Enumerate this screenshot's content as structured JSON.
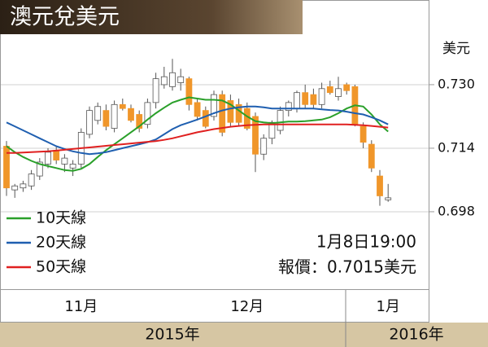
{
  "chart_data": {
    "type": "candlestick",
    "title": "澳元兌美元",
    "y_label": "美元",
    "categories": [
      null,
      null,
      null,
      null,
      null,
      null,
      null,
      null,
      null,
      "11月",
      null,
      null,
      null,
      null,
      null,
      null,
      null,
      null,
      null,
      null,
      null,
      null,
      null,
      null,
      null,
      null,
      null,
      null,
      null,
      "12月",
      null,
      null,
      null,
      null,
      null,
      null,
      null,
      null,
      null,
      null,
      null,
      null,
      null,
      null,
      null,
      null,
      "1月"
    ],
    "years": [
      "2015年",
      "2016年"
    ],
    "open": [
      0.7145,
      0.7035,
      0.704,
      0.7045,
      0.707,
      0.71,
      0.7135,
      0.71,
      0.709,
      0.71,
      0.7175,
      0.721,
      0.7235,
      0.719,
      0.725,
      0.724,
      0.7225,
      0.72,
      0.7255,
      0.73,
      0.7295,
      0.7305,
      0.7315,
      0.7255,
      0.7235,
      0.722,
      0.7275,
      0.726,
      0.725,
      0.724,
      0.722,
      0.7125,
      0.7165,
      0.7185,
      0.7235,
      0.724,
      0.728,
      0.7275,
      0.725,
      0.7295,
      0.727,
      0.73,
      0.7295,
      0.7195,
      0.715,
      0.707,
      0.701
    ],
    "high": [
      0.7158,
      0.705,
      0.7058,
      0.7085,
      0.7115,
      0.714,
      0.7145,
      0.7125,
      0.711,
      0.719,
      0.7245,
      0.7255,
      0.725,
      0.726,
      0.7265,
      0.725,
      0.7235,
      0.7265,
      0.733,
      0.7345,
      0.7365,
      0.734,
      0.732,
      0.7265,
      0.7245,
      0.7285,
      0.7285,
      0.7275,
      0.7265,
      0.7255,
      0.723,
      0.7175,
      0.721,
      0.7245,
      0.726,
      0.7285,
      0.73,
      0.729,
      0.7305,
      0.731,
      0.732,
      0.7305,
      0.73,
      0.7205,
      0.716,
      0.7085,
      0.705
    ],
    "low": [
      0.702,
      0.7015,
      0.703,
      0.7035,
      0.706,
      0.709,
      0.71,
      0.708,
      0.707,
      0.709,
      0.7165,
      0.72,
      0.7185,
      0.718,
      0.7235,
      0.7205,
      0.718,
      0.719,
      0.724,
      0.729,
      0.7285,
      0.7285,
      0.7235,
      0.721,
      0.719,
      0.721,
      0.717,
      0.7195,
      0.7195,
      0.7185,
      0.708,
      0.711,
      0.715,
      0.7175,
      0.722,
      0.723,
      0.724,
      0.724,
      0.724,
      0.7275,
      0.726,
      0.7275,
      0.7195,
      0.714,
      0.708,
      0.6995,
      0.7005
    ],
    "close": [
      0.704,
      0.7045,
      0.705,
      0.7075,
      0.7105,
      0.713,
      0.711,
      0.7115,
      0.71,
      0.718,
      0.7235,
      0.7245,
      0.7195,
      0.725,
      0.724,
      0.721,
      0.719,
      0.7255,
      0.7315,
      0.732,
      0.733,
      0.732,
      0.725,
      0.722,
      0.7195,
      0.7275,
      0.718,
      0.7205,
      0.7205,
      0.719,
      0.7125,
      0.7165,
      0.7205,
      0.7235,
      0.7255,
      0.728,
      0.725,
      0.725,
      0.729,
      0.728,
      0.729,
      0.7285,
      0.72,
      0.7155,
      0.709,
      0.702,
      0.7015
    ],
    "up_color": "#ffffff",
    "down_color": "#f0962a",
    "series": [
      {
        "name": "10天線",
        "color": "#2aa02a",
        "values": [
          0.7145,
          0.713,
          0.7118,
          0.7108,
          0.71,
          0.7095,
          0.709,
          0.7085,
          0.7083,
          0.7088,
          0.71,
          0.7118,
          0.7135,
          0.715,
          0.7165,
          0.718,
          0.7195,
          0.7212,
          0.7228,
          0.7242,
          0.7255,
          0.7262,
          0.7268,
          0.7265,
          0.7262,
          0.7262,
          0.726,
          0.725,
          0.7235,
          0.722,
          0.7208,
          0.7205,
          0.7203,
          0.7205,
          0.7207,
          0.7207,
          0.7208,
          0.721,
          0.7212,
          0.7218,
          0.7228,
          0.724,
          0.7248,
          0.7245,
          0.7225,
          0.72,
          0.7182
        ]
      },
      {
        "name": "20天線",
        "color": "#1f5fb0",
        "values": [
          0.7205,
          0.7195,
          0.7185,
          0.7175,
          0.7165,
          0.7155,
          0.7145,
          0.7138,
          0.7132,
          0.7128,
          0.7125,
          0.7127,
          0.713,
          0.7135,
          0.714,
          0.7145,
          0.715,
          0.7155,
          0.7162,
          0.7175,
          0.7188,
          0.7198,
          0.7205,
          0.7212,
          0.722,
          0.7228,
          0.7235,
          0.724,
          0.7243,
          0.7245,
          0.7245,
          0.7243,
          0.724,
          0.724,
          0.724,
          0.724,
          0.724,
          0.724,
          0.7238,
          0.7236,
          0.7235,
          0.7232,
          0.7228,
          0.7225,
          0.7218,
          0.721,
          0.72
        ]
      },
      {
        "name": "50天線",
        "color": "#e02020",
        "values": [
          0.7128,
          0.7128,
          0.7129,
          0.713,
          0.7131,
          0.7132,
          0.7134,
          0.7136,
          0.7138,
          0.714,
          0.7142,
          0.7144,
          0.7146,
          0.7148,
          0.715,
          0.7152,
          0.7154,
          0.7156,
          0.7158,
          0.7161,
          0.7165,
          0.717,
          0.7175,
          0.718,
          0.7184,
          0.7188,
          0.7191,
          0.7194,
          0.7196,
          0.7198,
          0.7199,
          0.72,
          0.72,
          0.72,
          0.72,
          0.72,
          0.72,
          0.72,
          0.72,
          0.72,
          0.72,
          0.72,
          0.7199,
          0.7198,
          0.7196,
          0.7194,
          0.7192
        ]
      }
    ],
    "ylim": [
      0.6785,
      0.7425
    ],
    "yticks": [
      {
        "value": 0.73,
        "label": "0.730"
      },
      0.714,
      0.698
    ],
    "grid": true,
    "annotations": [
      "1月8日19:00",
      "報價：0.7015美元"
    ]
  }
}
